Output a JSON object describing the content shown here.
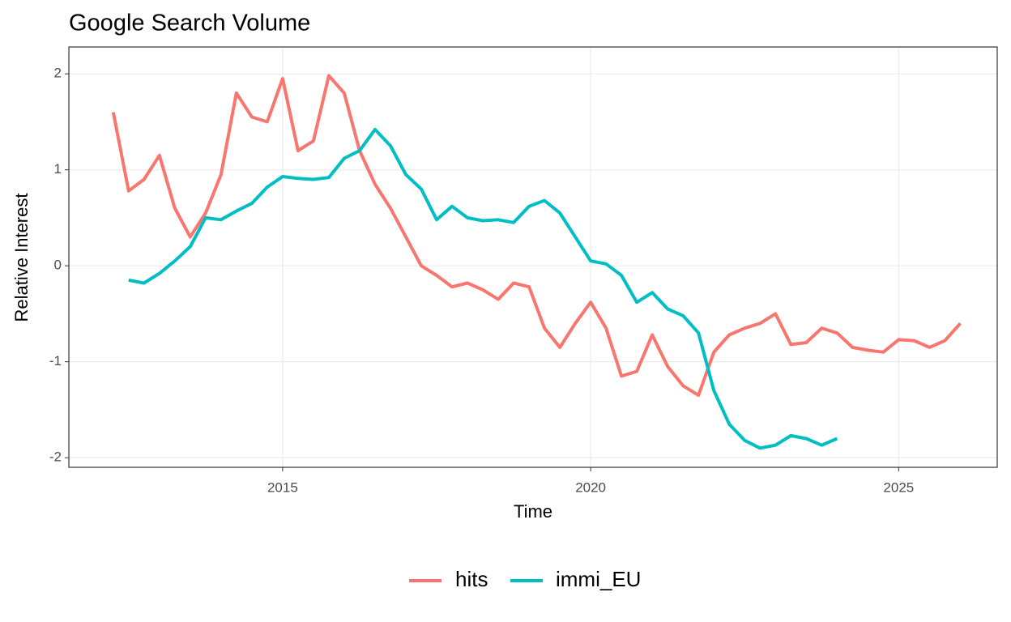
{
  "chart_data": {
    "type": "line",
    "title": "Google Search Volume",
    "x_label": "Time",
    "y_label": "Relative Interest",
    "x": [
      2012.25,
      2012.5,
      2012.75,
      2013,
      2013.25,
      2013.5,
      2013.75,
      2014,
      2014.25,
      2014.5,
      2014.75,
      2015,
      2015.25,
      2015.5,
      2015.75,
      2016,
      2016.25,
      2016.5,
      2016.75,
      2017,
      2017.25,
      2017.5,
      2017.75,
      2018,
      2018.25,
      2018.5,
      2018.75,
      2019,
      2019.25,
      2019.5,
      2019.75,
      2020,
      2020.25,
      2020.5,
      2020.75,
      2021,
      2021.25,
      2021.5,
      2021.75,
      2022,
      2022.25,
      2022.5,
      2022.75,
      2023,
      2023.25,
      2023.5,
      2023.75,
      2024,
      2024.25,
      2024.5,
      2024.75,
      2025,
      2025.25,
      2025.5,
      2025.75,
      2026
    ],
    "series": [
      {
        "name": "hits",
        "color": "#f8766d",
        "values": [
          1.6,
          0.78,
          0.9,
          1.15,
          0.6,
          0.3,
          0.55,
          0.95,
          1.8,
          1.55,
          1.5,
          1.95,
          1.2,
          1.3,
          1.98,
          1.8,
          1.2,
          0.85,
          0.6,
          0.3,
          0.0,
          -0.1,
          -0.22,
          -0.18,
          -0.25,
          -0.35,
          -0.18,
          -0.22,
          -0.65,
          -0.85,
          -0.6,
          -0.38,
          -0.65,
          -1.15,
          -1.1,
          -0.72,
          -1.05,
          -1.25,
          -1.35,
          -0.9,
          -0.72,
          -0.65,
          -0.6,
          -0.5,
          -0.82,
          -0.8,
          -0.65,
          -0.7,
          -0.85,
          -0.88,
          -0.9,
          -0.77,
          -0.78,
          -0.85,
          -0.78,
          -0.6
        ]
      },
      {
        "name": "immi_EU",
        "color": "#00bfc4",
        "values": [
          null,
          -0.15,
          -0.18,
          -0.08,
          0.05,
          0.2,
          0.5,
          0.48,
          0.57,
          0.65,
          0.82,
          0.93,
          0.91,
          0.9,
          0.92,
          1.12,
          1.2,
          1.42,
          1.25,
          0.95,
          0.8,
          0.48,
          0.62,
          0.5,
          0.47,
          0.48,
          0.45,
          0.62,
          0.68,
          0.55,
          0.3,
          0.05,
          0.02,
          -0.1,
          -0.38,
          -0.28,
          -0.45,
          -0.52,
          -0.7,
          -1.3,
          -1.65,
          -1.82,
          -1.9,
          -1.87,
          -1.77,
          -1.8,
          -1.87,
          -1.8,
          null,
          null,
          null,
          null,
          null,
          null,
          null,
          null
        ]
      }
    ],
    "xlim": [
      2011.53,
      2026.6
    ],
    "xticks": [
      2015,
      2020,
      2025
    ],
    "ylim": [
      -2.1,
      2.28
    ],
    "yticks": [
      -2,
      -1,
      0,
      1,
      2
    ],
    "grid": true,
    "legend": "bottom"
  }
}
